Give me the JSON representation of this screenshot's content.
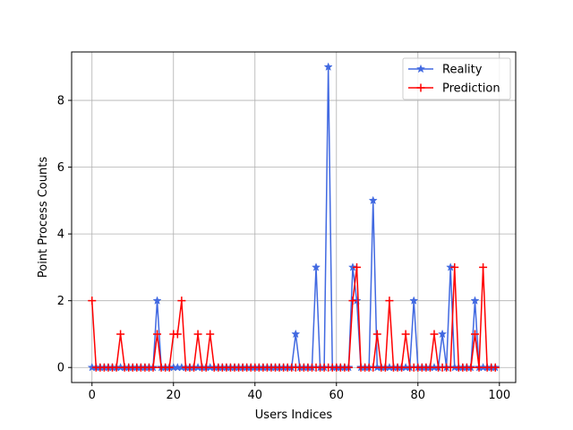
{
  "chart_data": {
    "type": "line",
    "title": "",
    "xlabel": "Users Indices",
    "ylabel": "Point Process Counts",
    "xlim": [
      -5,
      104
    ],
    "ylim": [
      -0.45,
      9.45
    ],
    "x_ticks": [
      0,
      20,
      40,
      60,
      80,
      100
    ],
    "y_ticks": [
      0,
      2,
      4,
      6,
      8
    ],
    "grid": true,
    "legend_position": "top-right",
    "x": [
      0,
      1,
      2,
      3,
      4,
      5,
      6,
      7,
      8,
      9,
      10,
      11,
      12,
      13,
      14,
      15,
      16,
      17,
      18,
      19,
      20,
      21,
      22,
      23,
      24,
      25,
      26,
      27,
      28,
      29,
      30,
      31,
      32,
      33,
      34,
      35,
      36,
      37,
      38,
      39,
      40,
      41,
      42,
      43,
      44,
      45,
      46,
      47,
      48,
      49,
      50,
      51,
      52,
      53,
      54,
      55,
      56,
      57,
      58,
      59,
      60,
      61,
      62,
      63,
      64,
      65,
      66,
      67,
      68,
      69,
      70,
      71,
      72,
      73,
      74,
      75,
      76,
      77,
      78,
      79,
      80,
      81,
      82,
      83,
      84,
      85,
      86,
      87,
      88,
      89,
      90,
      91,
      92,
      93,
      94,
      95,
      96,
      97,
      98,
      99
    ],
    "series": [
      {
        "name": "Reality",
        "color": "#4169E1",
        "marker": "star",
        "values": [
          0,
          0,
          0,
          0,
          0,
          0,
          0,
          0,
          0,
          0,
          0,
          0,
          0,
          0,
          0,
          0,
          2,
          0,
          0,
          0,
          0,
          0,
          0,
          0,
          0,
          0,
          0,
          0,
          0,
          0,
          0,
          0,
          0,
          0,
          0,
          0,
          0,
          0,
          0,
          0,
          0,
          0,
          0,
          0,
          0,
          0,
          0,
          0,
          0,
          0,
          1,
          0,
          0,
          0,
          0,
          3,
          0,
          0,
          9,
          0,
          0,
          0,
          0,
          0,
          3,
          2,
          0,
          0,
          0,
          5,
          0,
          0,
          0,
          0,
          0,
          0,
          0,
          0,
          0,
          2,
          0,
          0,
          0,
          0,
          0,
          0,
          1,
          0,
          3,
          0,
          0,
          0,
          0,
          0,
          2,
          0,
          0,
          0,
          0,
          0
        ]
      },
      {
        "name": "Prediction",
        "color": "#FF0000",
        "marker": "plus",
        "values": [
          2,
          0,
          0,
          0,
          0,
          0,
          0,
          1,
          0,
          0,
          0,
          0,
          0,
          0,
          0,
          0,
          1,
          0,
          0,
          0,
          1,
          1,
          2,
          0,
          0,
          0,
          1,
          0,
          0,
          1,
          0,
          0,
          0,
          0,
          0,
          0,
          0,
          0,
          0,
          0,
          0,
          0,
          0,
          0,
          0,
          0,
          0,
          0,
          0,
          0,
          0,
          0,
          0,
          0,
          0,
          0,
          0,
          0,
          0,
          0,
          0,
          0,
          0,
          0,
          2,
          3,
          0,
          0,
          0,
          0,
          1,
          0,
          0,
          2,
          0,
          0,
          0,
          1,
          0,
          0,
          0,
          0,
          0,
          0,
          1,
          0,
          0,
          0,
          0,
          3,
          0,
          0,
          0,
          0,
          1,
          0,
          3,
          0,
          0,
          0
        ]
      }
    ]
  }
}
